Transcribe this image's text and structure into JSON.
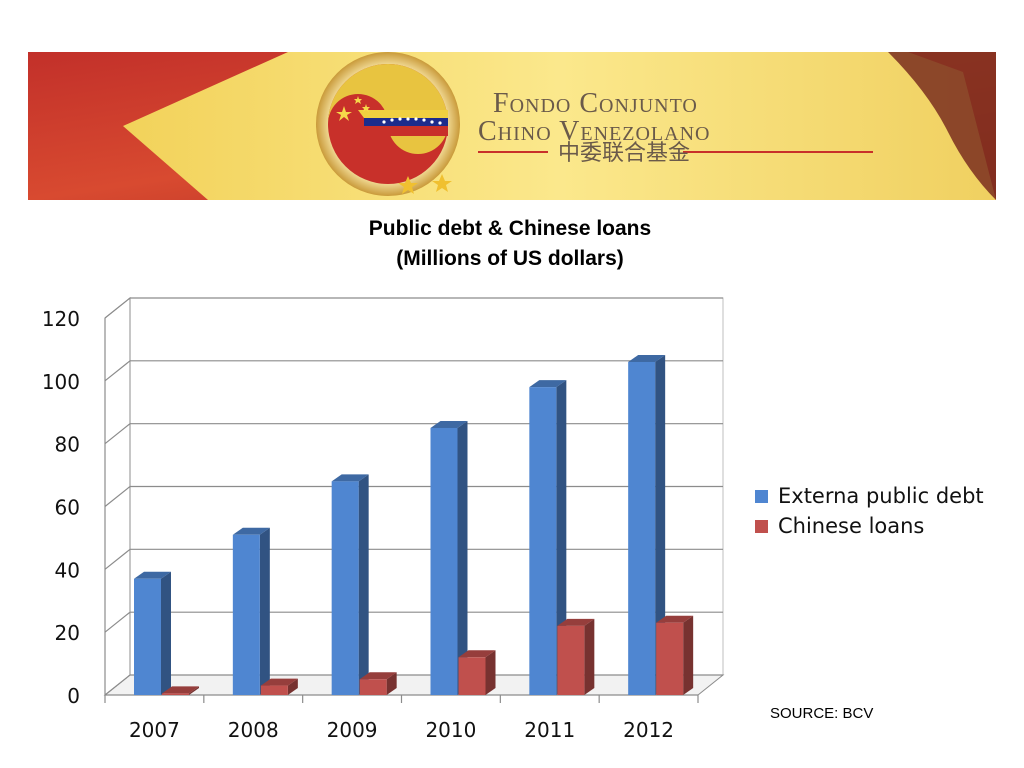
{
  "banner": {
    "title_line1": "Fondo Conjunto",
    "title_line2": "Chino Venezolano",
    "chinese_subtitle": "中委联合基金"
  },
  "chart_data": {
    "type": "bar",
    "title": "Public debt & Chinese loans",
    "subtitle": "(Millions of US dollars)",
    "categories": [
      "2007",
      "2008",
      "2009",
      "2010",
      "2011",
      "2012"
    ],
    "series": [
      {
        "name": "Externa public debt",
        "values": [
          37,
          51,
          68,
          85,
          98,
          106
        ],
        "color": "#4f86d1"
      },
      {
        "name": "Chinese loans",
        "values": [
          0.5,
          3,
          5,
          12,
          22,
          23
        ],
        "color": "#c0504d"
      }
    ],
    "ylim": [
      0,
      120
    ],
    "yticks": [
      "0",
      "20",
      "40",
      "60",
      "80",
      "100",
      "120"
    ],
    "grid": true,
    "legend_position": "right",
    "three_d": true
  },
  "source": "SOURCE: BCV"
}
